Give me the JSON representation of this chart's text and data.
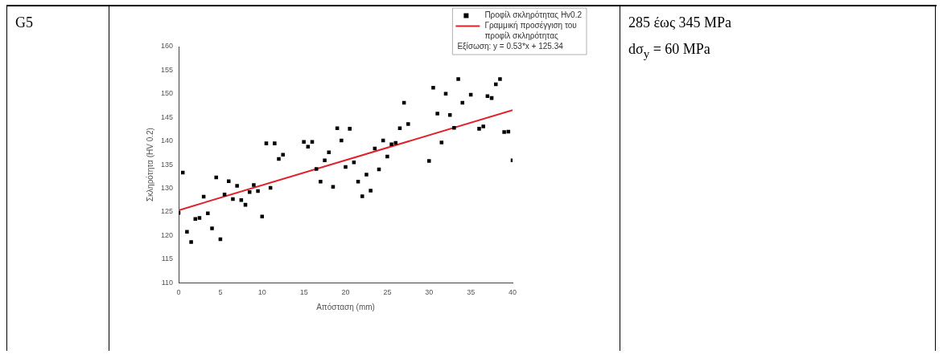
{
  "chart_data": [
    {
      "type": "other",
      "annotations": [
        "G5"
      ]
    },
    {
      "type": "scatter",
      "xlabel": "Απόσταση (mm)",
      "ylabel": "Σκληρότητα (HV 0.2)",
      "xlim": [
        0,
        40
      ],
      "xticks": [
        0,
        5,
        10,
        15,
        20,
        25,
        30,
        35,
        40
      ],
      "ylim": [
        110,
        160
      ],
      "yticks": [
        110,
        115,
        120,
        125,
        130,
        135,
        140,
        145,
        150,
        155,
        160
      ],
      "grid": false,
      "legend": "top right",
      "annotations": [
        "Εξίσωση: y = 0.53*x + 125.34"
      ],
      "series": [
        {
          "name": "Προφίλ σκληρότητας Hv0.2",
          "type": "scatter",
          "marker": "square",
          "color": "#000000",
          "x": [
            0,
            0.5,
            1,
            1.5,
            2,
            2.5,
            3,
            3.5,
            4,
            4.5,
            5,
            5.5,
            6,
            6.5,
            7,
            7.5,
            8,
            8.5,
            9,
            9.5,
            10,
            10.5,
            11,
            11.5,
            12,
            12.5,
            15,
            15.5,
            16,
            16.5,
            17,
            17.5,
            18,
            18.5,
            19,
            19.5,
            20,
            20.5,
            21,
            21.5,
            22,
            22.5,
            23,
            23.5,
            24,
            24.5,
            25,
            25.5,
            26,
            26.5,
            27,
            27.5,
            30,
            30.5,
            31,
            31.5,
            32,
            32.5,
            33,
            33.5,
            34,
            35,
            36,
            36.5,
            37,
            37.5,
            38,
            38.5,
            39,
            39.5,
            40
          ],
          "values": [
            124.8,
            133.3,
            120.8,
            118.6,
            123.5,
            123.7,
            128.2,
            124.7,
            121.5,
            132.3,
            119.2,
            128.7,
            131.5,
            127.7,
            130.5,
            127.5,
            126.5,
            129.2,
            130.7,
            129.4,
            124,
            139.5,
            130.1,
            139.5,
            136.2,
            137.1,
            139.8,
            138.8,
            139.8,
            134.1,
            131.4,
            135.9,
            137.6,
            130.3,
            142.7,
            140.1,
            134.5,
            142.6,
            135.5,
            131.4,
            128.3,
            132.9,
            129.5,
            138.4,
            134,
            140.1,
            136.7,
            139.3,
            139.6,
            142.7,
            148.1,
            143.6,
            135.8,
            151.3,
            145.8,
            139.7,
            150,
            145.5,
            142.8,
            153.1,
            148.1,
            149.8,
            142.6,
            143.1,
            149.5,
            149.1,
            152,
            153.1,
            141.9,
            142,
            135.9
          ]
        },
        {
          "name": "Γραμμική προσέγγιση του προφίλ σκληρότητας",
          "type": "line",
          "marker": "none",
          "line_style": "solid",
          "color": "#e0202a",
          "x": [
            0,
            40
          ],
          "values": [
            125.34,
            146.54
          ]
        }
      ]
    },
    {
      "type": "other",
      "annotations": [
        "285 έως 345 MPa",
        "dσ$_{y}$ = 60 MPa"
      ]
    }
  ]
}
